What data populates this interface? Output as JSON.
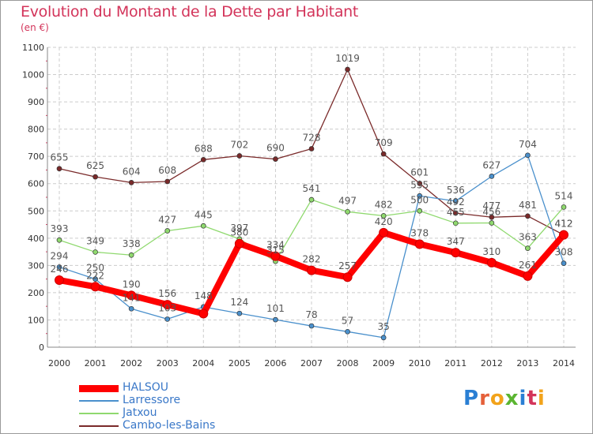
{
  "title": "Evolution du Montant de la Dette par Habitant",
  "subtitle": "(en €)",
  "logo": {
    "text": "Proxiti",
    "letters": [
      "P",
      "r",
      "o",
      "x",
      "i",
      "t",
      "i"
    ],
    "colors": [
      "#2a7fd4",
      "#e5603a",
      "#f2a31b",
      "#5bb531",
      "#2a7fd4",
      "#d3345a",
      "#f2a31b"
    ]
  },
  "colors": {
    "title": "#d3345a",
    "grid": "#cccccc",
    "axis_text": "#333333",
    "label_text": "#555555"
  },
  "chart_data": {
    "type": "line",
    "title": "Evolution du Montant de la Dette par Habitant",
    "ylabel": "(en €)",
    "xlabel": "",
    "x": [
      "2000",
      "2001",
      "2002",
      "2003",
      "2004",
      "2005",
      "2006",
      "2007",
      "2008",
      "2009",
      "2010",
      "2011",
      "2012",
      "2013",
      "2014"
    ],
    "ylim": [
      0,
      1100
    ],
    "yticks": [
      "0",
      "100",
      "200",
      "300",
      "400",
      "500",
      "600",
      "700",
      "800",
      "900",
      "1000",
      "1100"
    ],
    "grid": true,
    "legend": "bottom-left",
    "series": [
      {
        "name": "HALSOU",
        "color": "#ff0000",
        "values": [
          246,
          222,
          190,
          156,
          123,
          380,
          334,
          282,
          257,
          420,
          378,
          347,
          310,
          261,
          412
        ]
      },
      {
        "name": "Larressore",
        "color": "#4a90cc",
        "values": [
          294,
          250,
          141,
          103,
          148,
          124,
          101,
          78,
          57,
          35,
          555,
          536,
          627,
          704,
          308
        ]
      },
      {
        "name": "Jatxou",
        "color": "#8fd96e",
        "values": [
          393,
          349,
          338,
          427,
          445,
          397,
          315,
          541,
          497,
          482,
          500,
          455,
          456,
          363,
          514
        ]
      },
      {
        "name": "Cambo-les-Bains",
        "color": "#7a2a2a",
        "values": [
          655,
          625,
          604,
          608,
          688,
          702,
          690,
          728,
          1019,
          709,
          601,
          492,
          477,
          481,
          412
        ]
      }
    ],
    "data_labels": [
      [
        "246",
        "222",
        "190",
        "156",
        "",
        "380",
        "334",
        "282",
        "257",
        "420",
        "378",
        "347",
        "310",
        "261",
        "412"
      ],
      [
        "294",
        "250",
        "141",
        "103",
        "148",
        "124",
        "101",
        "78",
        "57",
        "35",
        "555",
        "536",
        "627",
        "704",
        "308"
      ],
      [
        "393",
        "349",
        "338",
        "427",
        "445",
        "397",
        "315",
        "541",
        "497",
        "482",
        "500",
        "455",
        "456",
        "363",
        "514"
      ],
      [
        "655",
        "625",
        "604",
        "608",
        "688",
        "702",
        "690",
        "728",
        "1019",
        "709",
        "601",
        "492",
        "477",
        "481",
        "412"
      ]
    ]
  }
}
